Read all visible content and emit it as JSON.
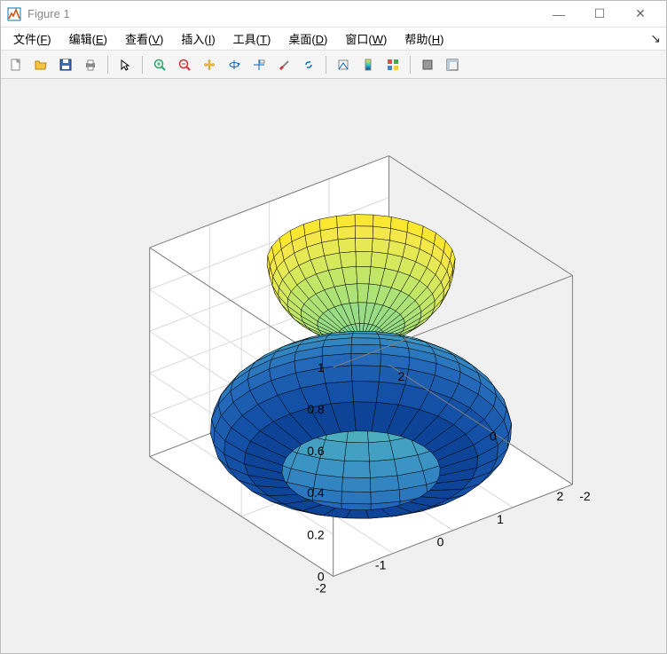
{
  "window": {
    "title": "Figure 1",
    "icon_label": "matlab-figure-icon"
  },
  "win_controls": {
    "minimize": "—",
    "maximize": "☐",
    "close": "✕"
  },
  "menu": {
    "items": [
      {
        "label": "文件",
        "acc": "F"
      },
      {
        "label": "编辑",
        "acc": "E"
      },
      {
        "label": "查看",
        "acc": "V"
      },
      {
        "label": "插入",
        "acc": "I"
      },
      {
        "label": "工具",
        "acc": "T"
      },
      {
        "label": "桌面",
        "acc": "D"
      },
      {
        "label": "窗口",
        "acc": "W"
      },
      {
        "label": "帮助",
        "acc": "H"
      }
    ]
  },
  "toolbar_icons": [
    "new-file-icon",
    "open-file-icon",
    "save-icon",
    "print-icon",
    "SEP",
    "pointer-icon",
    "SEP",
    "zoom-in-icon",
    "zoom-out-icon",
    "pan-icon",
    "rotate3d-icon",
    "data-cursor-icon",
    "brush-icon",
    "link-icon",
    "SEP",
    "colorbar-icon",
    "legend-icon",
    "insert-colorbar-icon",
    "SEP",
    "hide-tools-icon",
    "show-tools-icon"
  ],
  "plot": {
    "type": "surface3d",
    "description": "Surface of revolution: oblate spheroid with funnel (hourglass/vase shape)",
    "background_color": "#f0f0f0",
    "axes_box_color": "#808080",
    "gridline_color": "#d9d9d9",
    "mesh_edge_color": "#000000",
    "colormap": [
      "#0a3d91",
      "#1553a8",
      "#2266b8",
      "#2f7ec0",
      "#3c95c4",
      "#4aabc0",
      "#5bbfb3",
      "#74cf9f",
      "#95dc87",
      "#b8e56e",
      "#d9e95a",
      "#f2e74e",
      "#fde725"
    ],
    "colormap_domain": [
      0,
      1
    ],
    "x": {
      "lim": [
        -2,
        2
      ],
      "ticks": [
        -2,
        -1,
        0,
        1,
        2
      ]
    },
    "y": {
      "lim": [
        -2,
        2
      ],
      "ticks": [
        -2,
        0,
        2
      ]
    },
    "z": {
      "lim": [
        0,
        1
      ],
      "ticks": [
        0,
        0.2,
        0.4,
        0.6,
        0.8,
        1
      ]
    },
    "tick_fontsize": 14,
    "view_az_deg": -37.5,
    "view_el_deg": 30,
    "profile": {
      "comment": "radius r(z) for z in [0,1]",
      "z": [
        0.0,
        0.05,
        0.1,
        0.15,
        0.2,
        0.25,
        0.3,
        0.35,
        0.4,
        0.45,
        0.5,
        0.55,
        0.58,
        0.6,
        0.62,
        0.65,
        0.7,
        0.75,
        0.8,
        0.85,
        0.9,
        0.95,
        1.0
      ],
      "r": [
        1.05,
        1.55,
        1.82,
        1.96,
        2.0,
        1.96,
        1.86,
        1.7,
        1.48,
        1.17,
        0.78,
        0.38,
        0.12,
        0.02,
        0.1,
        0.3,
        0.58,
        0.8,
        0.98,
        1.1,
        1.18,
        1.22,
        1.25
      ]
    },
    "n_theta": 32
  }
}
